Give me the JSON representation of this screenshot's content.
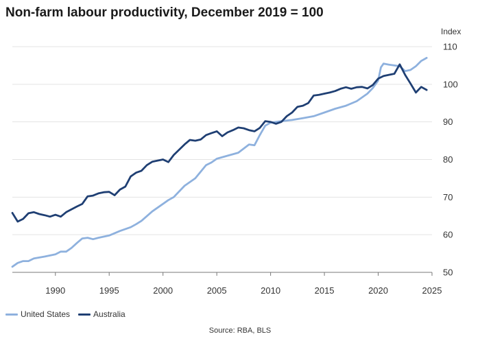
{
  "title": "Non-farm labour productivity, December 2019 = 100",
  "source": "Source: RBA, BLS",
  "colors": {
    "us": "#8eb1de",
    "au": "#1f3f73",
    "grid": "#e3e3e3",
    "axis": "#777777"
  },
  "chart_data": {
    "type": "line",
    "title": "Non-farm labour productivity, December 2019 = 100",
    "ylabel": "Index",
    "xlim": [
      1986,
      2025
    ],
    "ylim": [
      50,
      110
    ],
    "xticks": [
      1990,
      1995,
      2000,
      2005,
      2010,
      2015,
      2020,
      2025
    ],
    "yticks": [
      50,
      60,
      70,
      80,
      90,
      100,
      110
    ],
    "grid": "horizontal",
    "legend": "bottom-left",
    "series": [
      {
        "name": "United States",
        "x": [
          1986,
          1986.5,
          1987,
          1987.5,
          1988,
          1989,
          1990,
          1990.5,
          1991,
          1991.5,
          1992,
          1992.5,
          1993,
          1993.5,
          1994,
          1995,
          1996,
          1997,
          1997.5,
          1998,
          1999,
          2000,
          2000.5,
          2001,
          2002,
          2003,
          2004,
          2004.5,
          2005,
          2006,
          2007,
          2008,
          2008.5,
          2009,
          2009.5,
          2010,
          2011,
          2012,
          2013,
          2014,
          2015,
          2016,
          2017,
          2018,
          2019,
          2019.5,
          2020,
          2020.25,
          2020.5,
          2021,
          2021.5,
          2022,
          2022.5,
          2023,
          2023.5,
          2024,
          2024.5
        ],
        "values": [
          51.5,
          52.5,
          53,
          53,
          53.7,
          54.2,
          54.8,
          55.5,
          55.5,
          56.5,
          57.8,
          59,
          59.2,
          58.8,
          59.2,
          59.8,
          61,
          62,
          62.8,
          63.7,
          66.2,
          68.2,
          69.2,
          70,
          73,
          75,
          78.5,
          79.2,
          80.2,
          81,
          81.8,
          84,
          83.8,
          86.5,
          89,
          89.8,
          90.2,
          90.5,
          91,
          91.5,
          92.5,
          93.5,
          94.3,
          95.5,
          97.5,
          99,
          101,
          104.5,
          105.5,
          105.2,
          105,
          104.8,
          103.5,
          103.8,
          104.8,
          106.2,
          107
        ]
      },
      {
        "name": "Australia",
        "x": [
          1986,
          1986.5,
          1987,
          1987.5,
          1988,
          1988.5,
          1989,
          1989.5,
          1990,
          1990.5,
          1991,
          1992,
          1992.5,
          1993,
          1993.5,
          1994,
          1994.5,
          1995,
          1995.5,
          1996,
          1996.5,
          1997,
          1997.5,
          1998,
          1998.5,
          1999,
          1999.5,
          2000,
          2000.5,
          2001,
          2002,
          2002.5,
          2003,
          2003.5,
          2004,
          2004.5,
          2005,
          2005.5,
          2006,
          2006.5,
          2007,
          2007.5,
          2008,
          2008.5,
          2009,
          2009.5,
          2010,
          2010.5,
          2011,
          2011.5,
          2012,
          2012.5,
          2013,
          2013.5,
          2014,
          2014.5,
          2015,
          2015.5,
          2016,
          2016.5,
          2017,
          2017.5,
          2018,
          2018.5,
          2019,
          2019.5,
          2020,
          2020.5,
          2021,
          2021.5,
          2022,
          2022.5,
          2023,
          2023.5,
          2024,
          2024.5
        ],
        "values": [
          65.8,
          63.5,
          64.2,
          65.7,
          66,
          65.5,
          65.2,
          64.8,
          65.3,
          64.8,
          66,
          67.5,
          68.2,
          70.2,
          70.4,
          71,
          71.3,
          71.4,
          70.5,
          72,
          72.8,
          75.5,
          76.5,
          77,
          78.5,
          79.4,
          79.7,
          80,
          79.3,
          81.2,
          84,
          85.2,
          85,
          85.3,
          86.5,
          87,
          87.5,
          86.2,
          87.2,
          87.8,
          88.5,
          88.3,
          87.8,
          87.5,
          88.4,
          90.2,
          90,
          89.5,
          90,
          91.5,
          92.5,
          94,
          94.3,
          95,
          97,
          97.2,
          97.5,
          97.8,
          98.2,
          98.8,
          99.2,
          98.8,
          99.2,
          99.3,
          98.9,
          99.8,
          101.5,
          102.2,
          102.5,
          102.8,
          105.3,
          102.5,
          100.2,
          97.8,
          99.3,
          98.5
        ]
      }
    ]
  }
}
